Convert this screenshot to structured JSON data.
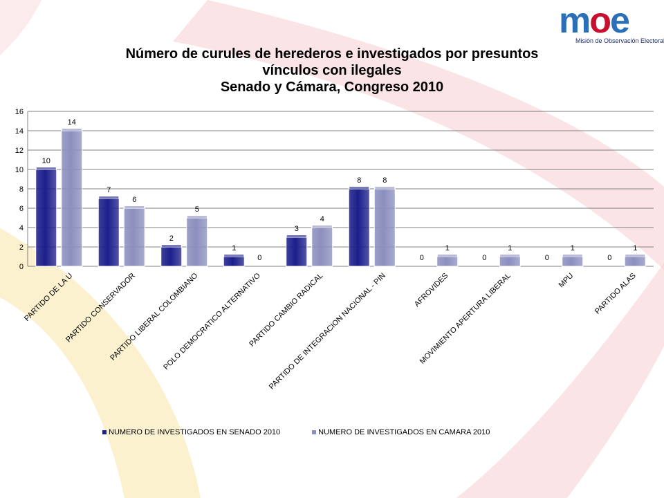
{
  "title": {
    "line1": "Número de curules de herederos e investigados por  presuntos",
    "line2": "vínculos con ilegales",
    "line3": "Senado y Cámara,  Congreso 2010"
  },
  "logo": {
    "word": "moe",
    "tagline": "Misión de Observación Electoral"
  },
  "colors": {
    "senado": "#1c1f8a",
    "camara": "#8c8fbe",
    "grid": "#808080",
    "logo_blue": "#2a6fb8",
    "logo_red": "#c8102e"
  },
  "chart_data": {
    "type": "bar",
    "categories": [
      "PARTIDO DE LA U",
      "PARTIDO CONSERVADOR",
      "PARTIDO LIBERAL COLOMBIANO",
      "POLO DEMOCRATICO ALTERNATIVO",
      "PARTIDO CAMBIO RADICAL",
      "PARTIDO DE INTEGRACION NACIONAL - PIN",
      "AFROVIDES",
      "MOVIMIENTO APERTURA LIBERAL",
      "MPU",
      "PARTIDO ALAS"
    ],
    "series": [
      {
        "name": "NUMERO DE INVESTIGADOS EN SENADO 2010",
        "values": [
          10,
          7,
          2,
          1,
          3,
          8,
          0,
          0,
          0,
          0
        ]
      },
      {
        "name": "NUMERO DE INVESTIGADOS EN CAMARA 2010",
        "values": [
          14,
          6,
          5,
          0,
          4,
          8,
          1,
          1,
          1,
          1
        ]
      }
    ],
    "yticks": [
      0,
      2,
      4,
      6,
      8,
      10,
      12,
      14,
      16
    ],
    "ylim": [
      0,
      16
    ],
    "grid": true,
    "legend_position": "bottom",
    "data_labels": true
  }
}
